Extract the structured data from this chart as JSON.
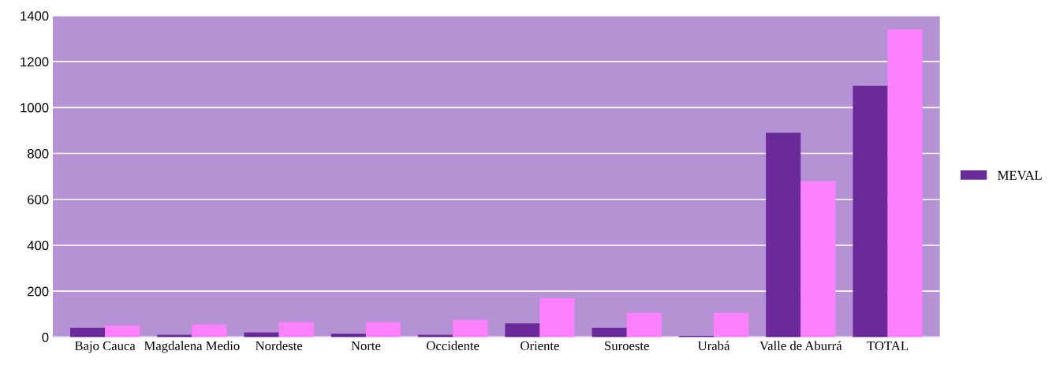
{
  "chart_data": {
    "type": "bar",
    "categories": [
      "Bajo Cauca",
      "Magdalena Medio",
      "Nordeste",
      "Norte",
      "Occidente",
      "Oriente",
      "Suroeste",
      "Urabá",
      "Valle de Aburrá",
      "TOTAL"
    ],
    "series": [
      {
        "name": "MEVAL",
        "color": "#6a2a9a",
        "values": [
          40,
          10,
          20,
          15,
          10,
          60,
          40,
          5,
          890,
          1095
        ]
      },
      {
        "color": "#ff80ff",
        "values": [
          50,
          55,
          65,
          65,
          75,
          170,
          105,
          105,
          680,
          1340
        ]
      }
    ],
    "ylim": [
      0,
      1400
    ],
    "yticks": [
      0,
      200,
      400,
      600,
      800,
      1000,
      1200,
      1400
    ],
    "grid": "y",
    "legend": "right"
  }
}
